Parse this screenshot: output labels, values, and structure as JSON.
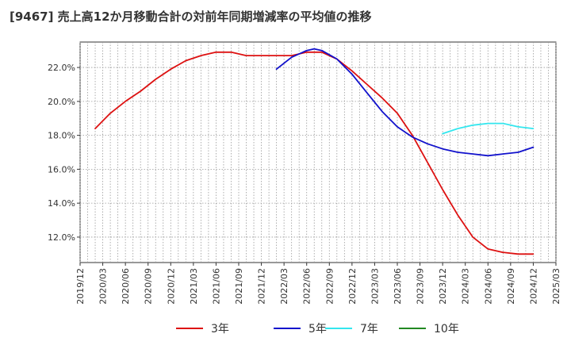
{
  "chart_data": {
    "type": "line",
    "title": "[9467]  売上高12か月移動合計の対前年同期増減率の平均値の推移",
    "xlabel": "",
    "ylabel": "",
    "x_ticks": [
      "2019/12",
      "2020/03",
      "2020/06",
      "2020/09",
      "2020/12",
      "2021/03",
      "2021/06",
      "2021/09",
      "2021/12",
      "2022/03",
      "2022/06",
      "2022/09",
      "2022/12",
      "2023/03",
      "2023/06",
      "2023/09",
      "2023/12",
      "2024/03",
      "2024/06",
      "2024/09",
      "2024/12",
      "2025/03"
    ],
    "y_ticks": [
      "12.0%",
      "14.0%",
      "16.0%",
      "18.0%",
      "20.0%",
      "22.0%"
    ],
    "y_tick_values": [
      12,
      14,
      16,
      18,
      20,
      22
    ],
    "ylim": [
      10.5,
      23.5
    ],
    "xlim": [
      "2019/12",
      "2025/03"
    ],
    "grid": true,
    "legend_position": "bottom",
    "series": [
      {
        "name": "3年",
        "color": "#dd1111",
        "points": [
          [
            "2020/02",
            18.4
          ],
          [
            "2020/04",
            19.3
          ],
          [
            "2020/06",
            20.0
          ],
          [
            "2020/08",
            20.6
          ],
          [
            "2020/10",
            21.3
          ],
          [
            "2020/12",
            21.9
          ],
          [
            "2021/02",
            22.4
          ],
          [
            "2021/04",
            22.7
          ],
          [
            "2021/06",
            22.9
          ],
          [
            "2021/08",
            22.9
          ],
          [
            "2021/10",
            22.7
          ],
          [
            "2021/12",
            22.7
          ],
          [
            "2022/02",
            22.7
          ],
          [
            "2022/04",
            22.7
          ],
          [
            "2022/06",
            22.9
          ],
          [
            "2022/08",
            22.9
          ],
          [
            "2022/10",
            22.5
          ],
          [
            "2022/12",
            21.8
          ],
          [
            "2023/02",
            21.0
          ],
          [
            "2023/04",
            20.2
          ],
          [
            "2023/06",
            19.3
          ],
          [
            "2023/08",
            18.0
          ],
          [
            "2023/10",
            16.4
          ],
          [
            "2023/12",
            14.8
          ],
          [
            "2024/02",
            13.3
          ],
          [
            "2024/04",
            12.0
          ],
          [
            "2024/06",
            11.3
          ],
          [
            "2024/08",
            11.1
          ],
          [
            "2024/10",
            11.0
          ],
          [
            "2024/12",
            11.0
          ]
        ]
      },
      {
        "name": "5年",
        "color": "#1111cc",
        "points": [
          [
            "2022/02",
            21.9
          ],
          [
            "2022/04",
            22.6
          ],
          [
            "2022/06",
            23.0
          ],
          [
            "2022/07",
            23.1
          ],
          [
            "2022/08",
            23.0
          ],
          [
            "2022/10",
            22.5
          ],
          [
            "2022/12",
            21.6
          ],
          [
            "2023/02",
            20.5
          ],
          [
            "2023/04",
            19.4
          ],
          [
            "2023/06",
            18.5
          ],
          [
            "2023/08",
            17.9
          ],
          [
            "2023/10",
            17.5
          ],
          [
            "2023/12",
            17.2
          ],
          [
            "2024/02",
            17.0
          ],
          [
            "2024/04",
            16.9
          ],
          [
            "2024/06",
            16.8
          ],
          [
            "2024/08",
            16.9
          ],
          [
            "2024/10",
            17.0
          ],
          [
            "2024/12",
            17.3
          ]
        ]
      },
      {
        "name": "7年",
        "color": "#33e6ee",
        "points": [
          [
            "2023/12",
            18.1
          ],
          [
            "2024/02",
            18.4
          ],
          [
            "2024/04",
            18.6
          ],
          [
            "2024/06",
            18.7
          ],
          [
            "2024/08",
            18.7
          ],
          [
            "2024/10",
            18.5
          ],
          [
            "2024/12",
            18.4
          ]
        ]
      },
      {
        "name": "10年",
        "color": "#228822",
        "points": []
      }
    ]
  }
}
